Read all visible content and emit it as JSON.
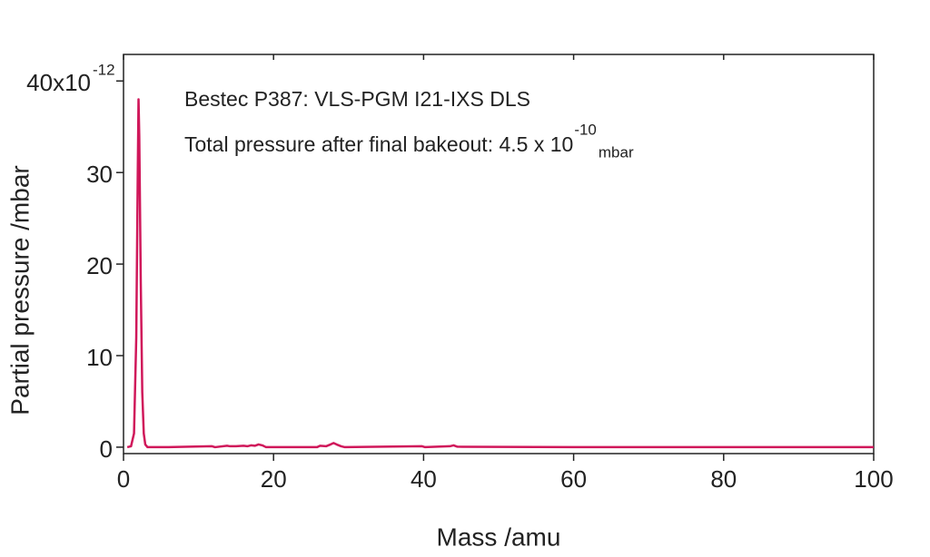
{
  "chart_data": {
    "type": "line",
    "x_label": "Mass /amu",
    "y_label": "Partial pressure /mbar",
    "y_exponent": "-12",
    "annotations": [
      {
        "text": "Bestec P387: VLS-PGM I21-IXS DLS"
      },
      {
        "text": "Total pressure after final bakeout: 4.5 x 10",
        "superscript": "-10",
        "subscript": "mbar"
      }
    ],
    "xlim": [
      0,
      100
    ],
    "xticks": [
      0,
      20,
      40,
      60,
      80,
      100
    ],
    "ylim": [
      -0.7,
      42.9
    ],
    "yticks": [
      0,
      10,
      20,
      30,
      {
        "value": 40,
        "label": "40x10"
      }
    ],
    "series": [
      {
        "color": "#d0175a",
        "x": [
          0.5,
          1,
          1.4,
          1.7,
          1.9,
          2.0,
          2.1,
          2.3,
          2.5,
          2.7,
          2.9,
          3.2,
          6,
          11.8,
          12.2,
          13.8,
          14.2,
          15,
          16,
          16.5,
          17,
          17.5,
          18,
          18.5,
          19,
          25.8,
          26.2,
          27,
          27.6,
          28,
          28.4,
          29,
          29.5,
          39.8,
          40.2,
          43.5,
          44,
          44.5,
          60,
          100
        ],
        "values": [
          0,
          0.1,
          1.5,
          12,
          30,
          38,
          34,
          18,
          6,
          1.5,
          0.3,
          0,
          0,
          0.1,
          0,
          0.15,
          0.1,
          0.1,
          0.15,
          0.1,
          0.2,
          0.15,
          0.3,
          0.2,
          0,
          0,
          0.15,
          0.1,
          0.3,
          0.45,
          0.3,
          0.1,
          0,
          0.1,
          0,
          0.1,
          0.2,
          0.05,
          0,
          0
        ]
      }
    ]
  }
}
